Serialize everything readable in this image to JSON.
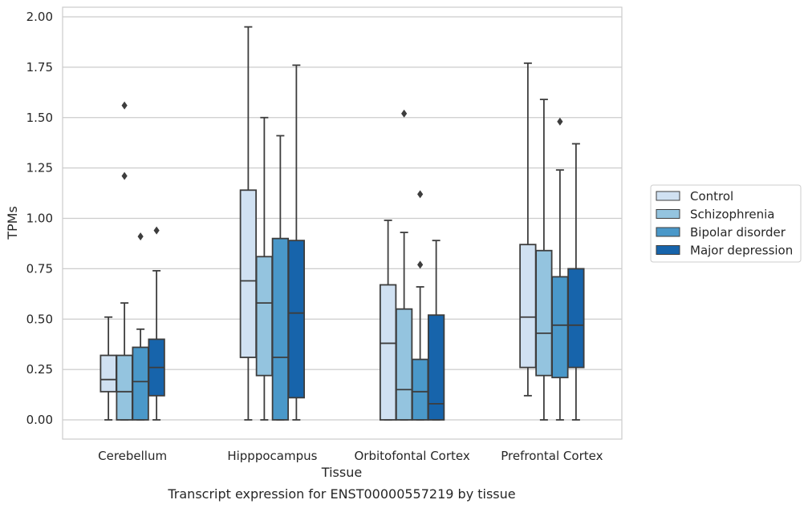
{
  "chart_data": {
    "type": "boxplot",
    "title": "Transcript expression for ENST00000557219 by tissue",
    "xlabel": "Tissue",
    "ylabel": "TPMs",
    "ylim": [
      -0.1,
      2.05
    ],
    "yticks": [
      0.0,
      0.25,
      0.5,
      0.75,
      1.0,
      1.25,
      1.5,
      1.75,
      2.0
    ],
    "ytick_labels": [
      "0.00",
      "0.25",
      "0.50",
      "0.75",
      "1.00",
      "1.25",
      "1.50",
      "1.75",
      "2.00"
    ],
    "grid": "horizontal",
    "legend_position": "right",
    "categories": [
      "Cerebellum",
      "Hipppocampus",
      "Orbitofontal Cortex",
      "Prefrontal Cortex"
    ],
    "series": [
      {
        "name": "Control",
        "color": "#d0e1f2",
        "boxes": [
          {
            "whislo": 0.0,
            "q1": 0.14,
            "med": 0.2,
            "q3": 0.32,
            "whishi": 0.51,
            "fliers": []
          },
          {
            "whislo": 0.0,
            "q1": 0.31,
            "med": 0.69,
            "q3": 1.14,
            "whishi": 1.95,
            "fliers": []
          },
          {
            "whislo": 0.0,
            "q1": 0.0,
            "med": 0.38,
            "q3": 0.67,
            "whishi": 0.99,
            "fliers": []
          },
          {
            "whislo": 0.12,
            "q1": 0.26,
            "med": 0.51,
            "q3": 0.87,
            "whishi": 1.77,
            "fliers": []
          }
        ]
      },
      {
        "name": "Schizophrenia",
        "color": "#94c4df",
        "boxes": [
          {
            "whislo": 0.0,
            "q1": 0.0,
            "med": 0.14,
            "q3": 0.32,
            "whishi": 0.58,
            "fliers": [
              1.21,
              1.56
            ]
          },
          {
            "whislo": 0.0,
            "q1": 0.22,
            "med": 0.58,
            "q3": 0.81,
            "whishi": 1.5,
            "fliers": []
          },
          {
            "whislo": 0.0,
            "q1": 0.0,
            "med": 0.15,
            "q3": 0.55,
            "whishi": 0.93,
            "fliers": [
              1.52
            ]
          },
          {
            "whislo": 0.0,
            "q1": 0.22,
            "med": 0.43,
            "q3": 0.84,
            "whishi": 1.59,
            "fliers": []
          }
        ]
      },
      {
        "name": "Bipolar disorder",
        "color": "#4a98c9",
        "boxes": [
          {
            "whislo": 0.0,
            "q1": 0.0,
            "med": 0.19,
            "q3": 0.36,
            "whishi": 0.45,
            "fliers": [
              0.91
            ]
          },
          {
            "whislo": 0.0,
            "q1": 0.0,
            "med": 0.31,
            "q3": 0.9,
            "whishi": 1.41,
            "fliers": []
          },
          {
            "whislo": 0.0,
            "q1": 0.0,
            "med": 0.14,
            "q3": 0.3,
            "whishi": 0.66,
            "fliers": [
              0.77,
              1.12
            ]
          },
          {
            "whislo": 0.0,
            "q1": 0.21,
            "med": 0.47,
            "q3": 0.71,
            "whishi": 1.24,
            "fliers": [
              1.48
            ]
          }
        ]
      },
      {
        "name": "Major depression",
        "color": "#1764ab",
        "boxes": [
          {
            "whislo": 0.0,
            "q1": 0.12,
            "med": 0.26,
            "q3": 0.4,
            "whishi": 0.74,
            "fliers": [
              0.94
            ]
          },
          {
            "whislo": 0.0,
            "q1": 0.11,
            "med": 0.53,
            "q3": 0.89,
            "whishi": 1.76,
            "fliers": []
          },
          {
            "whislo": 0.0,
            "q1": 0.0,
            "med": 0.08,
            "q3": 0.52,
            "whishi": 0.89,
            "fliers": []
          },
          {
            "whislo": 0.0,
            "q1": 0.26,
            "med": 0.47,
            "q3": 0.75,
            "whishi": 1.37,
            "fliers": []
          }
        ]
      }
    ]
  }
}
